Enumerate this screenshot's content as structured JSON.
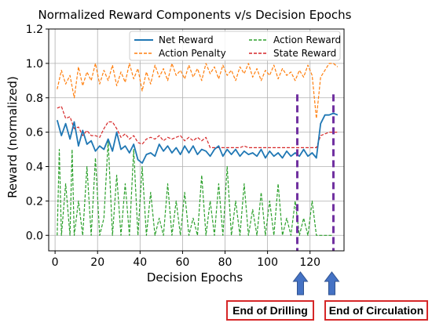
{
  "chart_data": {
    "type": "line",
    "title": "Normalized Reward Components v/s Decision Epochs",
    "xlabel": "Decision Epochs",
    "ylabel": "Reward (normalized)",
    "xlim": [
      -3,
      136
    ],
    "ylim": [
      -0.09,
      1.2
    ],
    "xticks": [
      "0",
      "20",
      "40",
      "60",
      "80",
      "100",
      "120"
    ],
    "yticks": [
      "0.0",
      "0.2",
      "0.4",
      "0.6",
      "0.8",
      "1.0",
      "1.2"
    ],
    "grid": true,
    "legend_position": "top-right",
    "series": [
      {
        "name": "Net Reward",
        "color": "#1f77b4",
        "style": "solid",
        "x": [
          1,
          3,
          5,
          7,
          9,
          11,
          13,
          15,
          17,
          19,
          21,
          23,
          25,
          27,
          29,
          31,
          33,
          35,
          37,
          39,
          41,
          43,
          45,
          47,
          49,
          51,
          53,
          55,
          57,
          59,
          61,
          63,
          65,
          67,
          69,
          71,
          73,
          75,
          77,
          79,
          81,
          83,
          85,
          87,
          89,
          91,
          93,
          95,
          97,
          99,
          101,
          103,
          105,
          107,
          109,
          111,
          113,
          115,
          117,
          119,
          121,
          123,
          125,
          127,
          129,
          131,
          133
        ],
        "values": [
          0.67,
          0.58,
          0.65,
          0.56,
          0.66,
          0.52,
          0.61,
          0.53,
          0.55,
          0.49,
          0.52,
          0.5,
          0.56,
          0.49,
          0.6,
          0.5,
          0.52,
          0.48,
          0.53,
          0.44,
          0.42,
          0.47,
          0.48,
          0.46,
          0.53,
          0.49,
          0.52,
          0.48,
          0.51,
          0.47,
          0.52,
          0.48,
          0.52,
          0.47,
          0.5,
          0.49,
          0.46,
          0.5,
          0.52,
          0.46,
          0.5,
          0.47,
          0.5,
          0.46,
          0.49,
          0.47,
          0.48,
          0.46,
          0.5,
          0.45,
          0.49,
          0.46,
          0.48,
          0.45,
          0.49,
          0.46,
          0.48,
          0.46,
          0.5,
          0.46,
          0.48,
          0.45,
          0.65,
          0.7,
          0.7,
          0.71,
          0.7
        ]
      },
      {
        "name": "Action Reward",
        "color": "#2ca02c",
        "style": "dashed",
        "x": [
          1,
          2,
          3,
          5,
          7,
          8,
          9,
          11,
          13,
          15,
          17,
          19,
          21,
          23,
          25,
          27,
          29,
          31,
          33,
          35,
          37,
          39,
          41,
          43,
          45,
          47,
          49,
          51,
          53,
          55,
          57,
          59,
          61,
          63,
          65,
          67,
          69,
          71,
          73,
          75,
          77,
          79,
          81,
          83,
          85,
          87,
          89,
          91,
          93,
          95,
          97,
          99,
          101,
          103,
          105,
          107,
          109,
          111,
          113,
          115,
          117,
          119,
          121,
          123,
          125,
          127,
          129,
          131
        ],
        "values": [
          0.0,
          0.5,
          0.0,
          0.3,
          0.0,
          0.5,
          0.0,
          0.2,
          0.0,
          0.4,
          0.0,
          0.45,
          0.0,
          0.1,
          0.55,
          0.0,
          0.35,
          0.0,
          0.3,
          0.0,
          0.5,
          0.0,
          0.4,
          0.0,
          0.25,
          0.0,
          0.1,
          0.0,
          0.3,
          0.0,
          0.2,
          0.0,
          0.25,
          0.0,
          0.1,
          0.0,
          0.35,
          0.0,
          0.2,
          0.0,
          0.3,
          0.0,
          0.4,
          0.0,
          0.2,
          0.0,
          0.3,
          0.0,
          0.15,
          0.0,
          0.25,
          0.0,
          0.2,
          0.0,
          0.3,
          0.0,
          0.1,
          0.0,
          0.2,
          0.0,
          0.1,
          0.0,
          0.2,
          0.0,
          0.0,
          0.0,
          0.0,
          0.0
        ]
      },
      {
        "name": "Action Penalty",
        "color": "#ff7f0e",
        "style": "dashed",
        "x": [
          1,
          3,
          5,
          7,
          9,
          11,
          13,
          15,
          17,
          19,
          21,
          23,
          25,
          27,
          29,
          31,
          33,
          35,
          37,
          39,
          41,
          43,
          45,
          47,
          49,
          51,
          53,
          55,
          57,
          59,
          61,
          63,
          65,
          67,
          69,
          71,
          73,
          75,
          77,
          79,
          81,
          83,
          85,
          87,
          89,
          91,
          93,
          95,
          97,
          99,
          101,
          103,
          105,
          107,
          109,
          111,
          113,
          115,
          117,
          119,
          121,
          123,
          125,
          127,
          129,
          131,
          133
        ],
        "values": [
          0.85,
          0.96,
          0.88,
          0.93,
          0.8,
          0.98,
          0.87,
          0.95,
          0.9,
          1.0,
          0.88,
          0.96,
          0.9,
          0.99,
          0.87,
          0.95,
          0.89,
          1.0,
          0.91,
          0.97,
          0.84,
          0.95,
          0.88,
          0.99,
          0.92,
          0.97,
          0.9,
          1.0,
          0.93,
          0.96,
          0.91,
          0.99,
          0.92,
          0.97,
          0.9,
          1.0,
          0.94,
          0.98,
          0.91,
          0.99,
          0.93,
          0.96,
          0.9,
          0.98,
          0.94,
          1.0,
          0.92,
          0.97,
          0.9,
          0.96,
          0.93,
          0.99,
          0.91,
          0.97,
          0.93,
          0.95,
          0.9,
          0.96,
          0.92,
          0.99,
          0.93,
          0.68,
          0.92,
          0.96,
          1.0,
          1.0,
          0.98
        ]
      },
      {
        "name": "State Reward",
        "color": "#d62728",
        "style": "dashed",
        "x": [
          1,
          3,
          5,
          7,
          9,
          11,
          13,
          15,
          17,
          19,
          21,
          23,
          25,
          27,
          29,
          31,
          33,
          35,
          37,
          39,
          41,
          43,
          45,
          47,
          49,
          51,
          53,
          55,
          57,
          59,
          61,
          63,
          65,
          67,
          69,
          71,
          73,
          75,
          77,
          79,
          81,
          83,
          85,
          87,
          89,
          91,
          93,
          95,
          97,
          99,
          101,
          103,
          105,
          107,
          109,
          111,
          113,
          115,
          117,
          119,
          121,
          123,
          125,
          127,
          129,
          131,
          133
        ],
        "values": [
          0.74,
          0.75,
          0.68,
          0.69,
          0.62,
          0.63,
          0.58,
          0.61,
          0.58,
          0.58,
          0.57,
          0.62,
          0.66,
          0.66,
          0.62,
          0.57,
          0.59,
          0.56,
          0.58,
          0.54,
          0.53,
          0.56,
          0.57,
          0.56,
          0.58,
          0.55,
          0.57,
          0.56,
          0.57,
          0.58,
          0.55,
          0.57,
          0.55,
          0.57,
          0.55,
          0.57,
          0.51,
          0.51,
          0.51,
          0.51,
          0.51,
          0.51,
          0.51,
          0.51,
          0.52,
          0.51,
          0.51,
          0.51,
          0.51,
          0.51,
          0.51,
          0.51,
          0.51,
          0.51,
          0.51,
          0.51,
          0.51,
          0.51,
          0.51,
          0.51,
          0.51,
          0.51,
          0.58,
          0.59,
          0.6,
          0.6,
          0.6
        ]
      }
    ],
    "markers": [
      {
        "x": 114,
        "color": "#7030a0",
        "style": "dashed",
        "label": "End of Drilling"
      },
      {
        "x": 131,
        "color": "#7030a0",
        "style": "dashed",
        "label": "End of Circulation"
      }
    ],
    "arrow_color": "#4472c4",
    "callout_border_color": "#d62728"
  }
}
